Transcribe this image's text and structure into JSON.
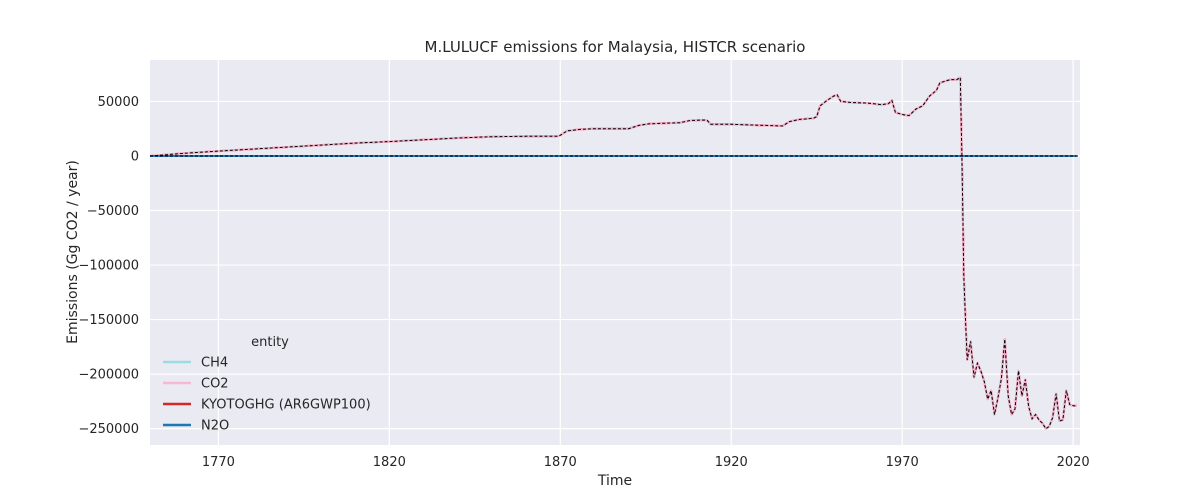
{
  "chart_data": {
    "type": "line",
    "title": "M.LULUCF emissions for Malaysia, HISTCR scenario",
    "xlabel": "Time",
    "ylabel": "Emissions (Gg CO2 / year)",
    "xlim": [
      1750,
      2022
    ],
    "ylim": [
      -265000,
      88000
    ],
    "xticks": [
      1770,
      1820,
      1870,
      1920,
      1970,
      2020
    ],
    "yticks": [
      50000,
      0,
      -50000,
      -100000,
      -150000,
      -200000,
      -250000
    ],
    "ytick_labels": [
      "50000",
      "0",
      "−50000",
      "−100000",
      "−150000",
      "−200000",
      "−250000"
    ],
    "grid": true,
    "legend": {
      "title": "entity",
      "placement": "lower-left"
    },
    "series": [
      {
        "name": "CH4",
        "color": "#9edae5",
        "style": "solid",
        "x": [
          1750,
          2021
        ],
        "y": [
          0,
          0
        ]
      },
      {
        "name": "CO2",
        "color": "#f7b6d2",
        "style": "solid",
        "ref": "KYOTOGHG (AR6GWP100)"
      },
      {
        "name": "KYOTOGHG (AR6GWP100)",
        "color": "#d62728",
        "style": "solid",
        "x": [
          1750,
          1760,
          1770,
          1780,
          1790,
          1800,
          1810,
          1820,
          1830,
          1840,
          1850,
          1860,
          1869,
          1870,
          1872,
          1876,
          1880,
          1890,
          1891,
          1893,
          1896,
          1900,
          1905,
          1908,
          1912,
          1913,
          1914,
          1916,
          1920,
          1925,
          1930,
          1935,
          1936,
          1937,
          1940,
          1944,
          1945,
          1946,
          1948,
          1950,
          1951,
          1952,
          1955,
          1960,
          1964,
          1966,
          1967,
          1968,
          1970,
          1972,
          1974,
          1976,
          1978,
          1980,
          1981,
          1982,
          1984,
          1985,
          1986,
          1987,
          1987.5,
          1988,
          1988.5,
          1989,
          1990,
          1991,
          1992,
          1993,
          1994,
          1995,
          1996,
          1997,
          1998,
          1999,
          2000,
          2001,
          2002,
          2003,
          2004,
          2005,
          2006,
          2007,
          2008,
          2009,
          2010,
          2011,
          2012,
          2013,
          2014,
          2015,
          2016,
          2017,
          2018,
          2019,
          2020,
          2021
        ],
        "y": [
          0,
          2500,
          4500,
          6300,
          8100,
          10000,
          11800,
          13200,
          14800,
          16500,
          17700,
          18000,
          18000,
          19000,
          23000,
          24500,
          25000,
          25000,
          26000,
          28000,
          29500,
          30000,
          30500,
          32500,
          33000,
          32500,
          29000,
          29000,
          29000,
          28500,
          28000,
          27500,
          29500,
          31500,
          33500,
          34500,
          36000,
          46000,
          51000,
          55000,
          56000,
          50000,
          49000,
          48500,
          47000,
          48000,
          51000,
          40000,
          38000,
          37000,
          43000,
          46000,
          55000,
          60000,
          67000,
          68000,
          70000,
          70000,
          70000,
          72000,
          -5000,
          -110000,
          -150000,
          -187000,
          -170000,
          -203000,
          -190000,
          -197000,
          -207000,
          -223000,
          -215000,
          -237000,
          -222000,
          -204000,
          -168000,
          -220000,
          -237000,
          -232000,
          -197000,
          -220000,
          -205000,
          -230000,
          -241000,
          -237000,
          -242000,
          -245000,
          -250000,
          -248000,
          -240000,
          -218000,
          -243000,
          -242000,
          -215000,
          -228000,
          -229000,
          -229000
        ]
      },
      {
        "name": "N2O",
        "color": "#1f77b4",
        "style": "solid",
        "x": [
          1750,
          2021
        ],
        "y": [
          0,
          0
        ]
      }
    ]
  }
}
